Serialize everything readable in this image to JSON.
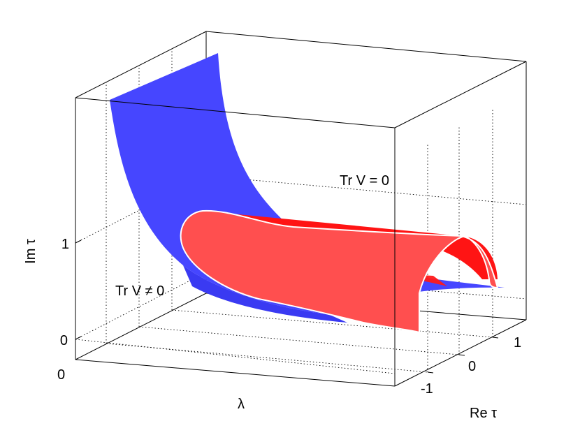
{
  "chart_data": {
    "type": "surface3d",
    "title": "",
    "axes": {
      "x": {
        "label": "λ",
        "tick_labels": [
          "0"
        ]
      },
      "y": {
        "label": "Re τ",
        "tick_labels": [
          "-1",
          "0",
          "1"
        ]
      },
      "z": {
        "label": "Im τ",
        "tick_labels": [
          "0",
          "1"
        ]
      }
    },
    "grid": true,
    "surfaces": [
      {
        "name": "Tr V ≠ 0",
        "color": "#4a4aff",
        "shape": "decaying sheet in Im τ vs λ"
      },
      {
        "name": "Tr V = 0",
        "color": "#ff2a2a",
        "shape": "semicircular arch in Re τ, extended along λ"
      }
    ],
    "annotations": [
      {
        "text": "Tr V = 0"
      },
      {
        "text": "Tr V ≠ 0"
      }
    ]
  }
}
